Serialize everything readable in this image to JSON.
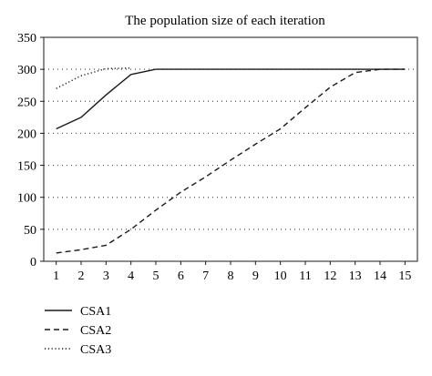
{
  "chart_data": {
    "type": "line",
    "title": "The population size of each iteration",
    "xlabel": "",
    "ylabel": "",
    "x": [
      1,
      2,
      3,
      4,
      5,
      6,
      7,
      8,
      9,
      10,
      11,
      12,
      13,
      14,
      15
    ],
    "xlim": [
      0.5,
      15.5
    ],
    "ylim": [
      0,
      350
    ],
    "yticks": [
      0,
      50,
      100,
      150,
      200,
      250,
      300,
      350
    ],
    "grid": "horizontal-dotted",
    "legend_position": "bottom-left",
    "series": [
      {
        "name": "CSA1",
        "style": "solid",
        "x": [
          1,
          2,
          3,
          4,
          5,
          6,
          7,
          8,
          9,
          10,
          11,
          12,
          13,
          14,
          15
        ],
        "values": [
          207,
          225,
          260,
          292,
          300,
          300,
          300,
          300,
          300,
          300,
          300,
          300,
          300,
          300,
          300
        ]
      },
      {
        "name": "CSA2",
        "style": "dashed",
        "x": [
          1,
          2,
          3,
          4,
          5,
          6,
          7,
          8,
          9,
          10,
          11,
          12,
          13,
          14,
          15
        ],
        "values": [
          13,
          18,
          25,
          50,
          80,
          108,
          132,
          158,
          183,
          207,
          240,
          272,
          295,
          300,
          300
        ]
      },
      {
        "name": "CSA3",
        "style": "dotted",
        "x": [
          1,
          2,
          3,
          4
        ],
        "values": [
          270,
          290,
          301,
          302
        ]
      }
    ],
    "colors": {
      "line": "#1a1a1a",
      "grid": "#555555",
      "background": "#ffffff"
    }
  }
}
